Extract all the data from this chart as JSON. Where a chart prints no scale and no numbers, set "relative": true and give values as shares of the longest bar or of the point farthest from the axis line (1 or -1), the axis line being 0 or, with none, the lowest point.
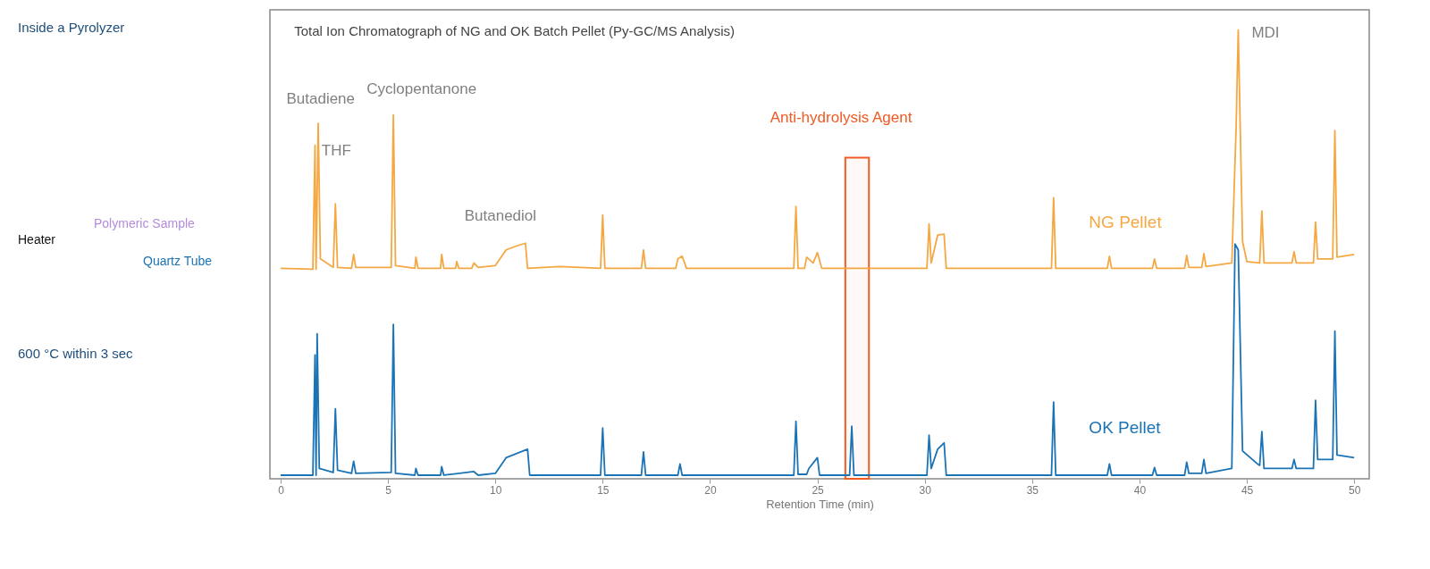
{
  "chart_data": [
    {
      "type": "other",
      "annotations": [
        "Inside a Pyrolyzer",
        "Heater",
        "Polymeric Sample",
        "Quartz Tube",
        "600 °C within 3 sec"
      ]
    },
    {
      "type": "line",
      "relative": true,
      "title": "Total Ion Chromatograph of NG and OK Batch Pellet (Py-GC/MS Analysis)",
      "xlabel": "Retention Time (min)",
      "xlim": [
        -0.5,
        50.7
      ],
      "xticks": [
        0,
        5,
        10,
        15,
        20,
        25,
        30,
        35,
        40,
        45,
        50
      ],
      "grid": false,
      "legend": false,
      "marker": "none",
      "line_style": "solid",
      "series": [
        {
          "name": "NG Pellet",
          "color": "#f5a742",
          "x": [
            0,
            1.5,
            1.6,
            1.65,
            1.75,
            1.85,
            2.45,
            2.55,
            2.65,
            3.3,
            3.4,
            3.5,
            5.15,
            5.25,
            5.35,
            6.25,
            6.3,
            6.4,
            7.45,
            7.5,
            7.6,
            8.15,
            8.2,
            8.3,
            8.9,
            9,
            9.2,
            10,
            10.5,
            11,
            11.4,
            11.5,
            13,
            14.9,
            15,
            15.1,
            16.8,
            16.9,
            17,
            18.4,
            18.5,
            18.7,
            18.9,
            23.9,
            24,
            24.1,
            24.4,
            24.5,
            24.8,
            25,
            25.2,
            30.1,
            30.2,
            30.3,
            30.6,
            30.9,
            31,
            35.9,
            36,
            36.1,
            38.5,
            38.6,
            38.7,
            40.6,
            40.7,
            40.8,
            42.1,
            42.2,
            42.3,
            42.9,
            43,
            43.1,
            44.3,
            44.5,
            44.6,
            44.8,
            45,
            45.6,
            45.7,
            45.8,
            47.1,
            47.2,
            47.3,
            48.1,
            48.2,
            48.3,
            49,
            49.1,
            49.2,
            50
          ],
          "values": [
            0.469,
            0.467,
            0.743,
            0.467,
            0.792,
            0.49,
            0.471,
            0.613,
            0.471,
            0.469,
            0.5,
            0.471,
            0.471,
            0.811,
            0.475,
            0.469,
            0.494,
            0.469,
            0.469,
            0.5,
            0.469,
            0.469,
            0.484,
            0.469,
            0.469,
            0.481,
            0.471,
            0.475,
            0.51,
            0.519,
            0.525,
            0.469,
            0.473,
            0.469,
            0.588,
            0.469,
            0.469,
            0.51,
            0.469,
            0.469,
            0.49,
            0.496,
            0.469,
            0.469,
            0.607,
            0.469,
            0.469,
            0.494,
            0.481,
            0.504,
            0.469,
            0.469,
            0.568,
            0.481,
            0.543,
            0.545,
            0.469,
            0.469,
            0.626,
            0.469,
            0.469,
            0.496,
            0.469,
            0.469,
            0.49,
            0.469,
            0.469,
            0.498,
            0.471,
            0.471,
            0.502,
            0.473,
            0.481,
            0.782,
            1,
            0.529,
            0.484,
            0.481,
            0.597,
            0.481,
            0.481,
            0.506,
            0.481,
            0.481,
            0.572,
            0.49,
            0.49,
            0.776,
            0.494,
            0.5
          ]
        },
        {
          "name": "OK Pellet",
          "color": "#1a73b5",
          "x": [
            0,
            1.5,
            1.6,
            1.65,
            1.7,
            1.8,
            2.45,
            2.55,
            2.65,
            3.3,
            3.4,
            3.5,
            5.15,
            5.25,
            5.35,
            6.25,
            6.3,
            6.4,
            7.45,
            7.5,
            7.6,
            9,
            9.2,
            10,
            10.5,
            11.5,
            11.6,
            14.9,
            15,
            15.1,
            16.8,
            16.9,
            17,
            18.5,
            18.6,
            18.7,
            23.9,
            24,
            24.1,
            24.5,
            24.6,
            25,
            25.1,
            26.5,
            26.6,
            26.7,
            30.1,
            30.2,
            30.3,
            30.6,
            30.9,
            31,
            35.9,
            36,
            36.1,
            38.5,
            38.6,
            38.7,
            40.6,
            40.7,
            40.8,
            42.1,
            42.2,
            42.3,
            42.9,
            43,
            43.1,
            44.3,
            44.45,
            44.6,
            44.8,
            45.5,
            45.6,
            45.7,
            45.8,
            47.1,
            47.2,
            47.3,
            48.1,
            48.2,
            48.3,
            49,
            49.1,
            49.2,
            50
          ],
          "values": [
            0.008,
            0.008,
            0.276,
            0.008,
            0.323,
            0.023,
            0.014,
            0.156,
            0.019,
            0.012,
            0.039,
            0.012,
            0.014,
            0.344,
            0.012,
            0.008,
            0.023,
            0.008,
            0.008,
            0.027,
            0.008,
            0.016,
            0.008,
            0.012,
            0.047,
            0.066,
            0.008,
            0.008,
            0.113,
            0.008,
            0.008,
            0.06,
            0.008,
            0.008,
            0.033,
            0.008,
            0.008,
            0.128,
            0.01,
            0.01,
            0.023,
            0.047,
            0.008,
            0.008,
            0.117,
            0.008,
            0.008,
            0.097,
            0.023,
            0.066,
            0.08,
            0.008,
            0.008,
            0.171,
            0.008,
            0.008,
            0.033,
            0.008,
            0.008,
            0.025,
            0.008,
            0.008,
            0.037,
            0.012,
            0.012,
            0.043,
            0.012,
            0.023,
            0.523,
            0.51,
            0.062,
            0.033,
            0.03,
            0.105,
            0.023,
            0.023,
            0.043,
            0.023,
            0.023,
            0.175,
            0.043,
            0.043,
            0.329,
            0.053,
            0.047
          ]
        }
      ],
      "bands": [
        {
          "axis": "x",
          "from": 26.3,
          "to": 27.4,
          "color": "#f05a23"
        }
      ],
      "annotations": [
        "Butadiene",
        "THF",
        "Cyclopentanone",
        "Butanediol",
        "Anti-hydrolysis Agent",
        "MDI"
      ]
    }
  ]
}
